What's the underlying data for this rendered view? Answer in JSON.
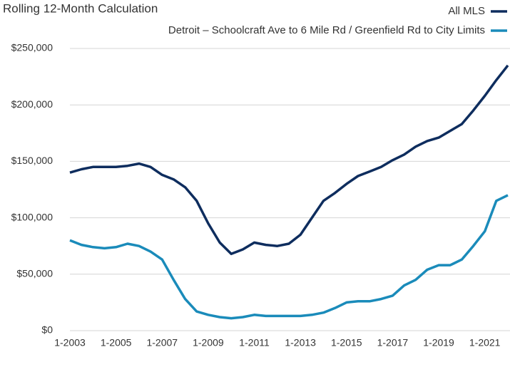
{
  "chart_data": {
    "type": "line",
    "title": "Rolling 12-Month Calculation",
    "categories": [
      "1-2003",
      null,
      null,
      null,
      "1-2005",
      null,
      null,
      null,
      "1-2007",
      null,
      null,
      null,
      "1-2009",
      null,
      null,
      null,
      "1-2011",
      null,
      null,
      null,
      "1-2013",
      null,
      null,
      null,
      "1-2015",
      null,
      null,
      null,
      "1-2017",
      null,
      null,
      null,
      "1-2019",
      null,
      null,
      null,
      "1-2021",
      null,
      null
    ],
    "series": [
      {
        "name": "All MLS",
        "color": "#0e2d5e",
        "values": [
          140000,
          143000,
          145000,
          145000,
          145000,
          146000,
          148000,
          145000,
          138000,
          134000,
          127000,
          115000,
          95000,
          78000,
          68000,
          72000,
          78000,
          76000,
          75000,
          77000,
          85000,
          100000,
          115000,
          122000,
          130000,
          137000,
          141000,
          145000,
          151000,
          156000,
          163000,
          168000,
          171000,
          177000,
          183000,
          195000,
          208000,
          222000,
          235000
        ]
      },
      {
        "name": "Detroit – Schoolcraft Ave to 6 Mile Rd / Greenfield Rd to City Limits",
        "color": "#1a8bba",
        "values": [
          80000,
          76000,
          74000,
          73000,
          74000,
          77000,
          75000,
          70000,
          63000,
          45000,
          28000,
          17000,
          14000,
          12000,
          11000,
          12000,
          14000,
          13000,
          13000,
          13000,
          13000,
          14000,
          16000,
          20000,
          25000,
          26000,
          26000,
          28000,
          31000,
          40000,
          45000,
          54000,
          58000,
          58000,
          63000,
          75000,
          88000,
          115000,
          120000
        ]
      }
    ],
    "ylim": [
      0,
      250000
    ],
    "yticks": [
      {
        "value": 0,
        "label": "$0"
      },
      {
        "value": 50000,
        "label": "$50,000"
      },
      {
        "value": 100000,
        "label": "$100,000"
      },
      {
        "value": 150000,
        "label": "$150,000"
      },
      {
        "value": 200000,
        "label": "$200,000"
      },
      {
        "value": 250000,
        "label": "$250,000"
      }
    ],
    "grid": true,
    "legend": "top-right"
  }
}
